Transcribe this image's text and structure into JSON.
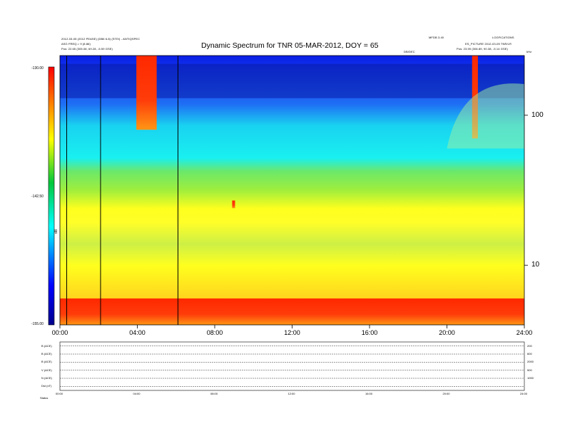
{
  "header": {
    "title": "Dynamic Spectrum for TNR 05-MAR-2012, DOY = 65",
    "left_line1": "2012-03-05 (2012 PEASE) (DB6 6.8) (STEI) - ANTIQSPEC",
    "left_line2": "ASG FREQ.= 9 (8.86)",
    "left_line3": "Pos: 22.65 (305.08, 69.28, -5.59 GSE)",
    "right_line1": "MFDB 3.40",
    "right_line2": "LOGFICATIONS",
    "right_line3": "ES_PICTURE 2012-03-05 TNR/LR",
    "right_line4": "Pos: 23.59 (306.89, 90.38, -5.14 GSE)",
    "center_small": "DB/DEC",
    "right_corner": "kHz"
  },
  "colorbar": {
    "max_label": "-130.00",
    "mid_label": "-142.50",
    "min_label": "-155.00",
    "unit": "dB"
  },
  "chart_data": {
    "type": "heatmap",
    "title": "Dynamic Spectrum for TNR 05-MAR-2012, DOY = 65",
    "x_ticks": [
      "00:00",
      "04:00",
      "08:00",
      "12:00",
      "16:00",
      "20:00",
      "24:00"
    ],
    "x_range_hours": [
      0,
      24
    ],
    "y_scale": "log",
    "y_ticks": [
      "100",
      "10"
    ],
    "y_tick_values": [
      100,
      10
    ],
    "y_range_khz": [
      4,
      250
    ],
    "colorbar_range_db": [
      -155.0,
      -130.0
    ],
    "colormap": [
      "#00008c",
      "#0000ff",
      "#00ffff",
      "#00c83c",
      "#ffff00",
      "#ff0000"
    ],
    "features": [
      {
        "hours": [
          3.95,
          5.0
        ],
        "khz": [
          80,
          250
        ],
        "level": "max"
      },
      {
        "hours": [
          21.3,
          21.6
        ],
        "khz": [
          70,
          250
        ],
        "level": "max"
      },
      {
        "hours": [
          8.9,
          9.05
        ],
        "khz": [
          24,
          27
        ],
        "level": "max"
      },
      {
        "hours": [
          20.0,
          24.0
        ],
        "khz": [
          60,
          250
        ],
        "level": "low"
      },
      {
        "hours": [
          0.0,
          24.0
        ],
        "khz": [
          4,
          6
        ],
        "level": "max"
      }
    ],
    "grid": false
  },
  "magnetometer": {
    "rows": [
      "B (ACE)",
      "B (ACE)",
      "B (ACE)",
      "V (ACE)",
      "N (ACE)",
      "Dst (nT)"
    ],
    "right_scale": [
      "200",
      "600",
      "2000",
      "500",
      "1000"
    ],
    "x_ticks": [
      "00:00",
      "04:00",
      "08:00",
      "12:00",
      "16:00",
      "20:00",
      "24:00"
    ],
    "status_label": "Status"
  }
}
